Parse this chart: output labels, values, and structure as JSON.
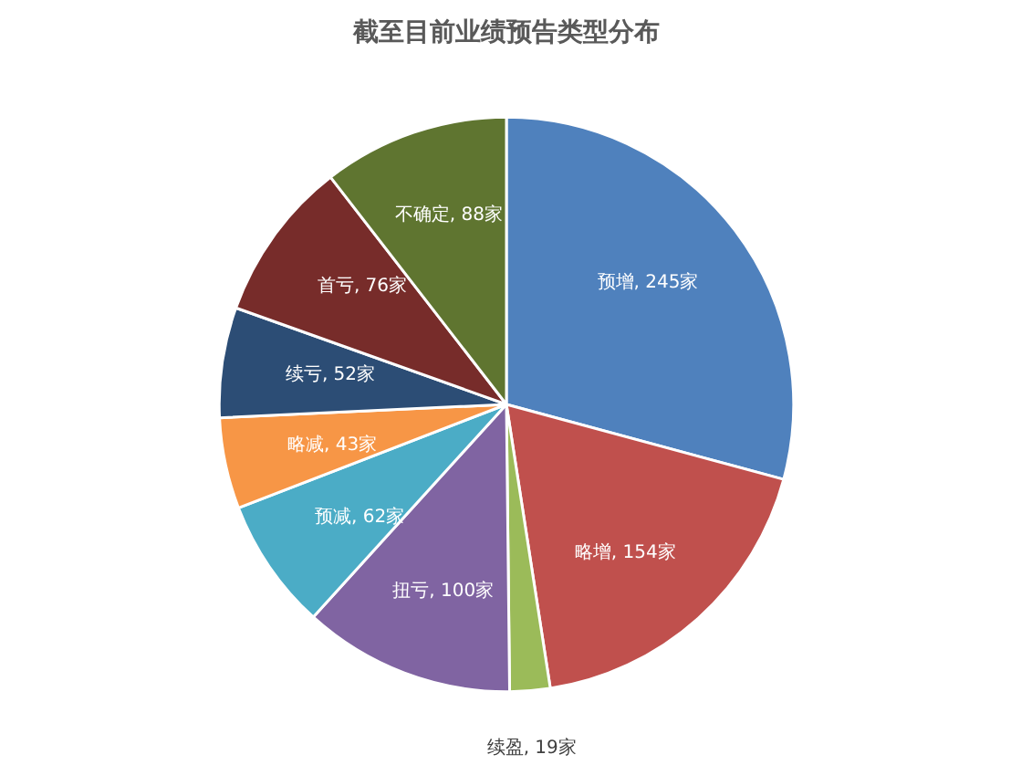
{
  "chart_data": {
    "type": "pie",
    "title": "截至目前业绩预告类型分布",
    "categories": [
      "预增",
      "略增",
      "续盈",
      "扭亏",
      "预减",
      "略减",
      "续亏",
      "首亏",
      "不确定"
    ],
    "values": [
      245,
      154,
      19,
      100,
      62,
      43,
      52,
      76,
      88
    ],
    "value_labels": [
      "245家",
      "154家",
      "19家",
      "100家",
      "62家",
      "43家",
      "52家",
      "76家",
      "88家"
    ],
    "colors": [
      "#4f81bd",
      "#c0504d",
      "#9bbb59",
      "#8064a2",
      "#4bacc6",
      "#f79646",
      "#2c4d75",
      "#772c2a",
      "#5f7530"
    ]
  }
}
